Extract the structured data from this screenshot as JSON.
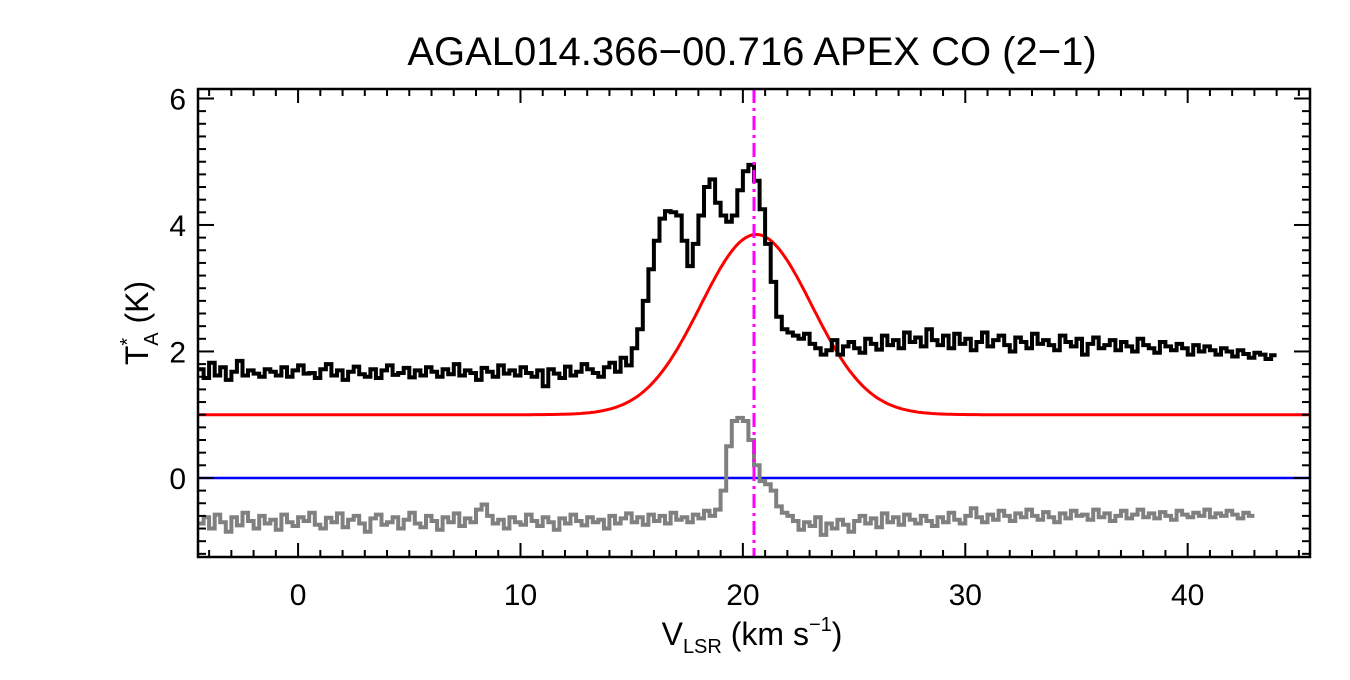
{
  "chart_data": {
    "type": "line",
    "title": "AGAL014.366−00.716  APEX CO (2−1)",
    "xlabel": {
      "main": "V",
      "sub": "LSR",
      "units_pre": " (km s",
      "sup": "−1",
      "units_post": ")"
    },
    "ylabel": {
      "main": "T",
      "sup": "*",
      "sub": "A",
      "units": " (K)"
    },
    "xlim": [
      -4.5,
      45.5
    ],
    "ylim": [
      -1.25,
      6.15
    ],
    "x_major_ticks": [
      0,
      10,
      20,
      30,
      40
    ],
    "x_tick_labels": [
      "0",
      "10",
      "20",
      "30",
      "40"
    ],
    "y_major_ticks": [
      0,
      2,
      4,
      6
    ],
    "y_tick_labels": [
      "0",
      "2",
      "4",
      "6"
    ],
    "vlsr_marker": 20.5,
    "baseline": 0,
    "colors": {
      "observed": "#000000",
      "fit": "#ff0000",
      "residual": "#808080",
      "baseline": "#0000ff",
      "vlsr_marker": "#ff00ff",
      "axes": "#000000"
    },
    "series": [
      {
        "name": "observed spectrum",
        "style": "step",
        "x_start": -4.5,
        "x_step": 0.25,
        "values": [
          1.72,
          1.58,
          1.82,
          1.62,
          1.75,
          1.55,
          1.68,
          1.85,
          1.62,
          1.7,
          1.65,
          1.6,
          1.72,
          1.68,
          1.62,
          1.75,
          1.6,
          1.7,
          1.78,
          1.65,
          1.66,
          1.58,
          1.72,
          1.8,
          1.62,
          1.7,
          1.55,
          1.68,
          1.76,
          1.64,
          1.6,
          1.72,
          1.58,
          1.7,
          1.78,
          1.63,
          1.66,
          1.74,
          1.59,
          1.7,
          1.62,
          1.75,
          1.68,
          1.6,
          1.72,
          1.64,
          1.8,
          1.62,
          1.7,
          1.66,
          1.55,
          1.74,
          1.68,
          1.6,
          1.78,
          1.65,
          1.7,
          1.62,
          1.75,
          1.66,
          1.6,
          1.7,
          1.45,
          1.72,
          1.65,
          1.58,
          1.76,
          1.62,
          1.68,
          1.8,
          1.72,
          1.66,
          1.6,
          1.75,
          1.82,
          1.68,
          1.9,
          1.78,
          2.05,
          2.35,
          2.8,
          3.3,
          3.75,
          4.1,
          4.22,
          4.2,
          4.15,
          3.75,
          3.35,
          3.7,
          4.15,
          4.6,
          4.72,
          4.35,
          4.15,
          4.05,
          4.15,
          4.55,
          4.85,
          4.95,
          4.7,
          4.25,
          3.7,
          3.1,
          2.55,
          2.35,
          2.3,
          2.25,
          2.2,
          2.28,
          2.12,
          2.05,
          1.95,
          2.02,
          2.18,
          1.95,
          2.08,
          2.15,
          2.05,
          1.98,
          2.2,
          2.12,
          2.03,
          2.25,
          2.1,
          2.18,
          2.05,
          2.3,
          2.15,
          2.22,
          2.08,
          2.35,
          2.18,
          2.1,
          2.25,
          2.05,
          2.28,
          2.12,
          2.2,
          2.02,
          2.15,
          2.3,
          2.08,
          2.18,
          2.25,
          2.1,
          2.0,
          2.22,
          2.15,
          2.05,
          2.28,
          2.12,
          2.18,
          2.1,
          2.02,
          2.25,
          2.15,
          2.08,
          2.2,
          1.95,
          2.12,
          2.22,
          2.05,
          2.1,
          2.18,
          2.02,
          2.15,
          2.08,
          2.0,
          2.2,
          2.1,
          2.05,
          1.98,
          2.15,
          2.08,
          2.02,
          2.12,
          2.05,
          1.95,
          2.1,
          2.0,
          2.08,
          2.02,
          1.95,
          2.05,
          2.0,
          1.92,
          2.02,
          1.96,
          1.9,
          1.98,
          1.95,
          1.88,
          1.94
        ]
      },
      {
        "name": "gaussian fit",
        "style": "smooth",
        "offset": 1.0,
        "amplitude": 2.85,
        "center": 20.6,
        "sigma": 2.5
      },
      {
        "name": "residual",
        "style": "step",
        "x_start": -4.5,
        "x_step": 0.25,
        "values": [
          -0.72,
          -0.62,
          -0.8,
          -0.58,
          -0.7,
          -0.85,
          -0.62,
          -0.75,
          -0.55,
          -0.68,
          -0.8,
          -0.6,
          -0.72,
          -0.66,
          -0.82,
          -0.58,
          -0.7,
          -0.76,
          -0.62,
          -0.68,
          -0.55,
          -0.74,
          -0.8,
          -0.63,
          -0.7,
          -0.56,
          -0.78,
          -0.66,
          -0.6,
          -0.72,
          -0.85,
          -0.64,
          -0.58,
          -0.74,
          -0.7,
          -0.62,
          -0.8,
          -0.66,
          -0.55,
          -0.72,
          -0.78,
          -0.6,
          -0.68,
          -0.82,
          -0.62,
          -0.7,
          -0.56,
          -0.76,
          -0.64,
          -0.7,
          -0.5,
          -0.42,
          -0.6,
          -0.72,
          -0.66,
          -0.8,
          -0.62,
          -0.7,
          -0.74,
          -0.58,
          -0.68,
          -0.76,
          -0.62,
          -0.7,
          -0.82,
          -0.64,
          -0.72,
          -0.58,
          -0.68,
          -0.75,
          -0.62,
          -0.7,
          -0.66,
          -0.8,
          -0.6,
          -0.72,
          -0.64,
          -0.56,
          -0.7,
          -0.62,
          -0.74,
          -0.58,
          -0.68,
          -0.6,
          -0.72,
          -0.55,
          -0.66,
          -0.62,
          -0.7,
          -0.58,
          -0.64,
          -0.52,
          -0.6,
          -0.5,
          -0.2,
          0.5,
          0.9,
          0.95,
          0.9,
          0.6,
          0.2,
          -0.05,
          -0.1,
          -0.2,
          -0.45,
          -0.55,
          -0.6,
          -0.68,
          -0.82,
          -0.7,
          -0.76,
          -0.62,
          -0.9,
          -0.72,
          -0.8,
          -0.66,
          -0.74,
          -0.85,
          -0.68,
          -0.6,
          -0.72,
          -0.64,
          -0.78,
          -0.56,
          -0.7,
          -0.62,
          -0.74,
          -0.58,
          -0.66,
          -0.72,
          -0.6,
          -0.68,
          -0.76,
          -0.62,
          -0.7,
          -0.55,
          -0.66,
          -0.72,
          -0.6,
          -0.48,
          -0.62,
          -0.7,
          -0.58,
          -0.66,
          -0.52,
          -0.6,
          -0.68,
          -0.56,
          -0.62,
          -0.5,
          -0.6,
          -0.66,
          -0.54,
          -0.62,
          -0.7,
          -0.56,
          -0.64,
          -0.52,
          -0.6,
          -0.58,
          -0.66,
          -0.5,
          -0.62,
          -0.56,
          -0.68,
          -0.6,
          -0.52,
          -0.64,
          -0.58,
          -0.5,
          -0.62,
          -0.56,
          -0.64,
          -0.54,
          -0.6,
          -0.66,
          -0.52,
          -0.58,
          -0.62,
          -0.55,
          -0.6,
          -0.5,
          -0.62,
          -0.56,
          -0.6,
          -0.52,
          -0.58,
          -0.64,
          -0.55,
          -0.6
        ]
      }
    ]
  }
}
